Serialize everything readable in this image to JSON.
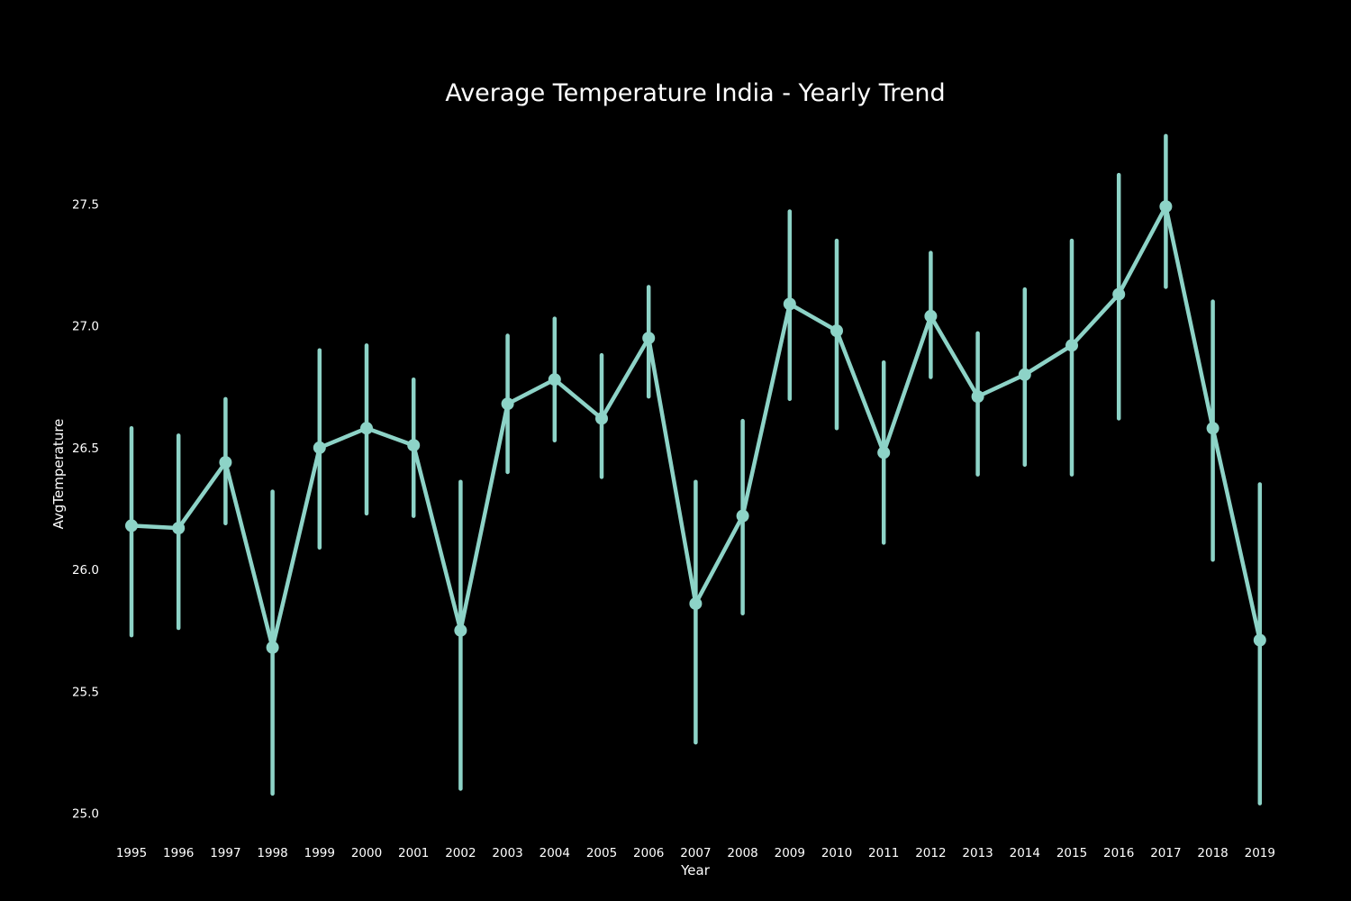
{
  "chart_data": {
    "type": "line",
    "title": "Average Temperature India - Yearly Trend",
    "xlabel": "Year",
    "ylabel": "AvgTemperature",
    "x": [
      "1995",
      "1996",
      "1997",
      "1998",
      "1999",
      "2000",
      "2001",
      "2002",
      "2003",
      "2004",
      "2005",
      "2006",
      "2007",
      "2008",
      "2009",
      "2010",
      "2011",
      "2012",
      "2013",
      "2014",
      "2015",
      "2016",
      "2017",
      "2018",
      "2019"
    ],
    "series": [
      {
        "values": [
          26.18,
          26.17,
          26.44,
          25.68,
          26.5,
          26.58,
          26.51,
          25.75,
          26.68,
          26.78,
          26.62,
          26.95,
          25.86,
          26.22,
          27.09,
          26.98,
          26.48,
          27.04,
          26.71,
          26.8,
          26.92,
          27.13,
          27.49,
          26.58,
          25.71
        ],
        "error_low": [
          25.73,
          25.76,
          26.19,
          25.08,
          26.09,
          26.23,
          26.22,
          25.1,
          26.4,
          26.53,
          26.38,
          26.71,
          25.29,
          25.82,
          26.7,
          26.58,
          26.11,
          26.79,
          26.39,
          26.43,
          26.39,
          26.62,
          27.16,
          26.04,
          25.04
        ],
        "error_high": [
          26.58,
          26.55,
          26.7,
          26.32,
          26.9,
          26.92,
          26.78,
          26.36,
          26.96,
          27.03,
          26.88,
          27.16,
          26.36,
          26.61,
          27.47,
          27.35,
          26.85,
          27.3,
          26.97,
          27.15,
          27.35,
          27.62,
          27.78,
          27.1,
          26.35
        ]
      }
    ],
    "yticks": [
      "25.0",
      "25.5",
      "26.0",
      "26.5",
      "27.0",
      "27.5"
    ],
    "ylim": [
      24.95,
      27.82
    ],
    "grid": false,
    "colors": {
      "background": "#000000",
      "series": "#8dd3c7",
      "text": "#ffffff"
    }
  }
}
